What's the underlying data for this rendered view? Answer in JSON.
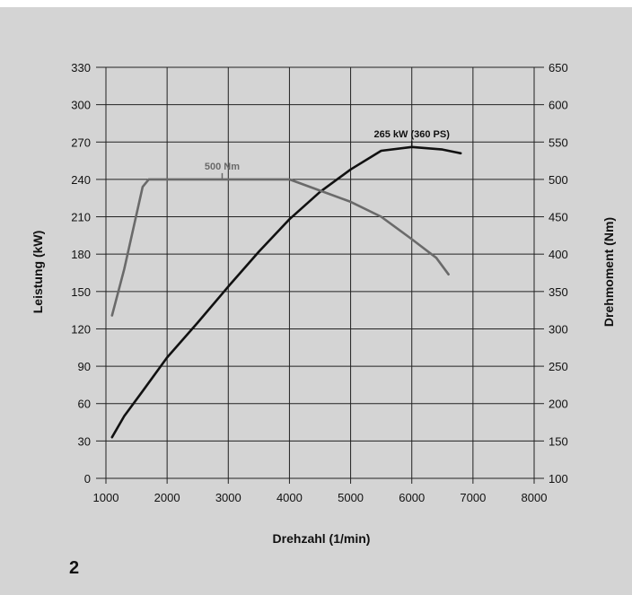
{
  "figure_number": "2",
  "chart_data": {
    "type": "line",
    "title": "",
    "grid": true,
    "xlabel": "Drehzahl (1/min)",
    "ylabel_left": "Leistung (kW)",
    "ylabel_right": "Drehmoment (Nm)",
    "xlim": [
      1000,
      8000
    ],
    "ylim_left": [
      0,
      330
    ],
    "ylim_right": [
      100,
      650
    ],
    "x_ticks": [
      1000,
      2000,
      3000,
      4000,
      5000,
      6000,
      7000,
      8000
    ],
    "y_ticks_left": [
      0,
      30,
      60,
      90,
      120,
      150,
      180,
      210,
      240,
      270,
      300,
      330
    ],
    "y_ticks_right": [
      100,
      150,
      200,
      250,
      300,
      350,
      400,
      450,
      500,
      550,
      600,
      650
    ],
    "series": [
      {
        "axis": "left",
        "color": "#111111",
        "points": [
          [
            1100,
            33
          ],
          [
            1300,
            50
          ],
          [
            1600,
            70
          ],
          [
            2000,
            97
          ],
          [
            2500,
            125
          ],
          [
            3000,
            154
          ],
          [
            3500,
            182
          ],
          [
            4000,
            208
          ],
          [
            4500,
            230
          ],
          [
            5000,
            248
          ],
          [
            5500,
            263
          ],
          [
            6000,
            266
          ],
          [
            6500,
            264
          ],
          [
            6800,
            261
          ]
        ]
      },
      {
        "axis": "right",
        "color": "#6a6a6a",
        "points": [
          [
            1100,
            318
          ],
          [
            1300,
            380
          ],
          [
            1600,
            490
          ],
          [
            1700,
            500
          ],
          [
            2000,
            500
          ],
          [
            3000,
            500
          ],
          [
            3500,
            500
          ],
          [
            4000,
            500
          ],
          [
            4500,
            485
          ],
          [
            5000,
            470
          ],
          [
            5500,
            450
          ],
          [
            6000,
            420
          ],
          [
            6400,
            395
          ],
          [
            6600,
            373
          ]
        ]
      }
    ],
    "annotations": [
      {
        "text": "500 Nm",
        "x": 2900,
        "y": 500,
        "axis": "right",
        "color": "#6a6a6a"
      },
      {
        "text": "265 kW (360 PS)",
        "x": 6000,
        "y": 266,
        "axis": "left",
        "color": "#111111"
      }
    ]
  }
}
